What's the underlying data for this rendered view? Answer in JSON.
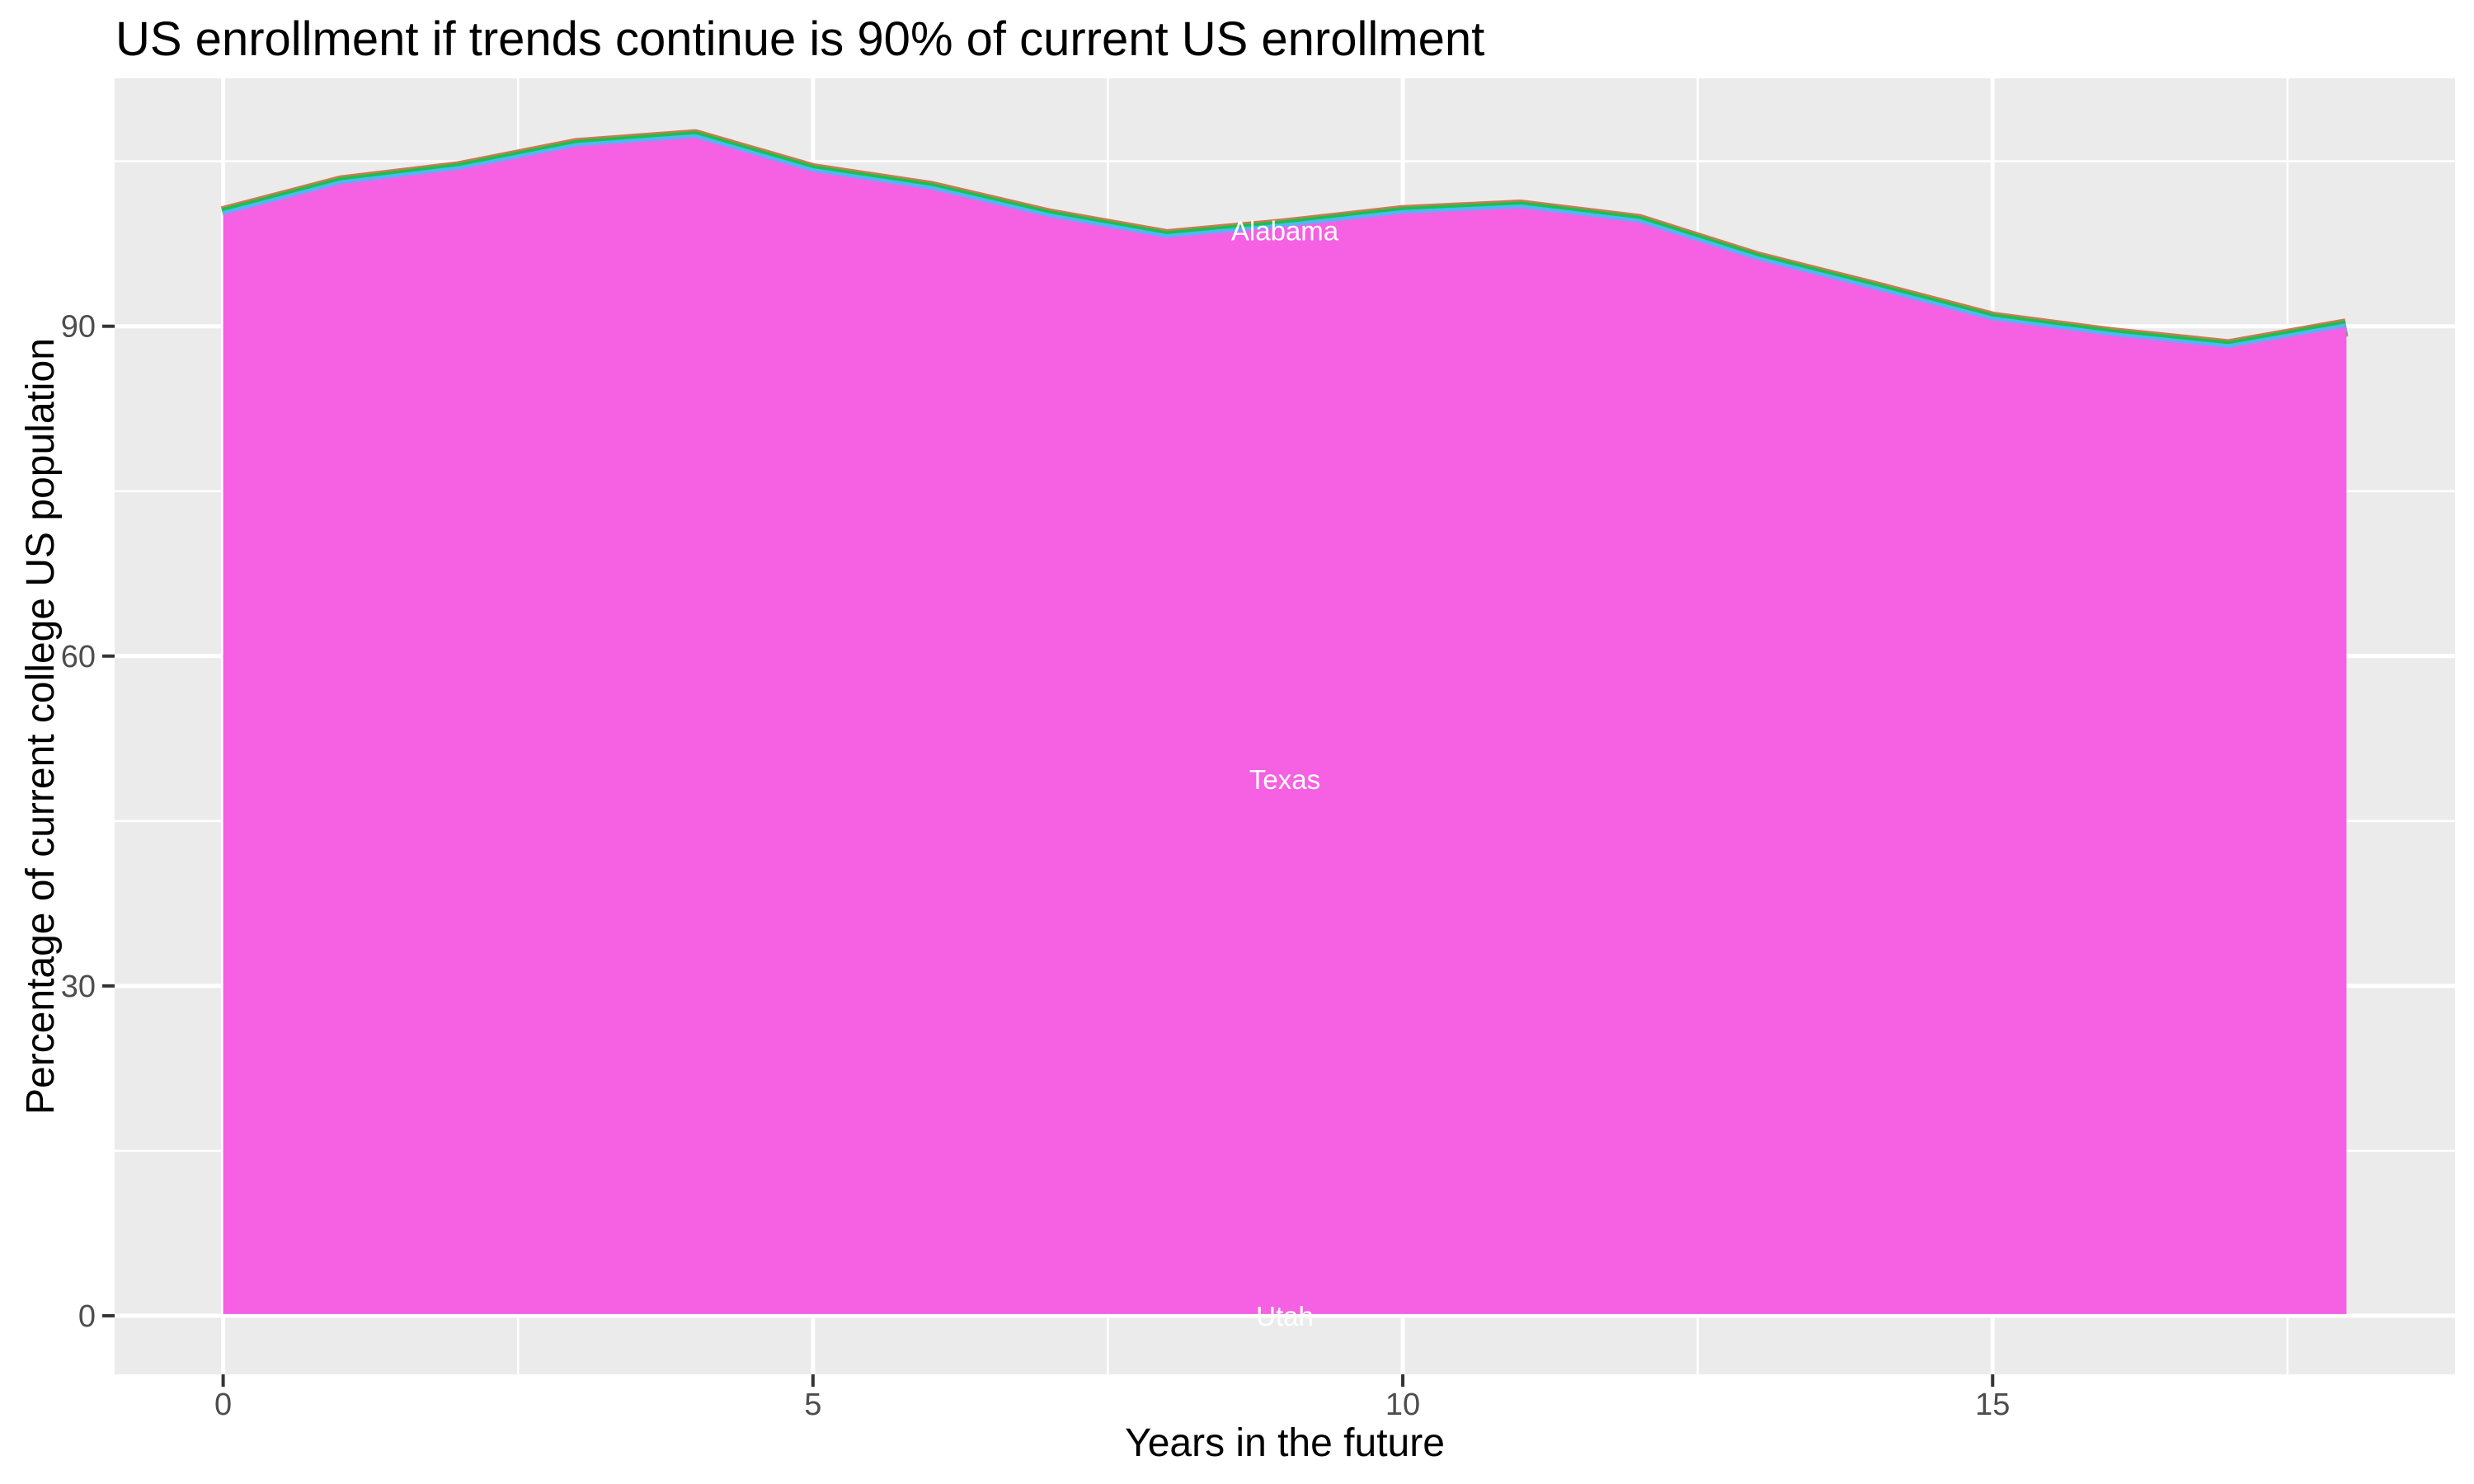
{
  "title": "US enrollment if trends continue is 90% of current US enrollment",
  "axes": {
    "x_title": "Years in the future",
    "y_title": "Percentage of current college US population",
    "x_ticks": [
      0,
      5,
      10,
      15
    ],
    "y_ticks": [
      0,
      30,
      60,
      90
    ],
    "x_minor_ticks": [
      2.5,
      7.5,
      12.5,
      17.5
    ],
    "y_minor_ticks": [
      15,
      45,
      75,
      105
    ]
  },
  "chart_data": {
    "type": "area",
    "stacked": true,
    "title": "US enrollment if trends continue is 90% of current US enrollment",
    "xlabel": "Years in the future",
    "ylabel": "Percentage of current college US population",
    "x": [
      0,
      1,
      2,
      3,
      4,
      5,
      6,
      7,
      8,
      9,
      10,
      11,
      12,
      13,
      14,
      15,
      16,
      17,
      18
    ],
    "stack_total_pct": [
      100.1,
      102.9,
      104.2,
      106.3,
      107.1,
      104.0,
      102.4,
      99.9,
      98.0,
      99.0,
      100.2,
      100.7,
      99.4,
      96.0,
      93.3,
      90.5,
      89.1,
      88.0,
      89.9
    ],
    "dominant_series": "Texas",
    "area_labels": [
      {
        "name": "Alabama",
        "x": 9,
        "y": 98.7
      },
      {
        "name": "Texas",
        "x": 9,
        "y": 48.8
      },
      {
        "name": "Utah",
        "x": 9,
        "y": 0.0
      }
    ],
    "xlim": [
      -0.92,
      18.92
    ],
    "ylim": [
      -5.33,
      112.55
    ],
    "grid": true,
    "legend": "none",
    "colors": {
      "panel_background": "#EBEBEB",
      "gridline": "#FFFFFF",
      "area_fill_texas": "#F561E2",
      "top_band_alabama_red": "#C67E55",
      "top_band_green": "#1DBE4C",
      "top_band_cyan": "#3FC1EE",
      "top_band_periwinkle": "#7E9DF8",
      "tick_mark": "#333333",
      "tick_label": "#4D4D4D",
      "title_text": "#000000",
      "area_label_text": "#FFFFFF"
    }
  }
}
